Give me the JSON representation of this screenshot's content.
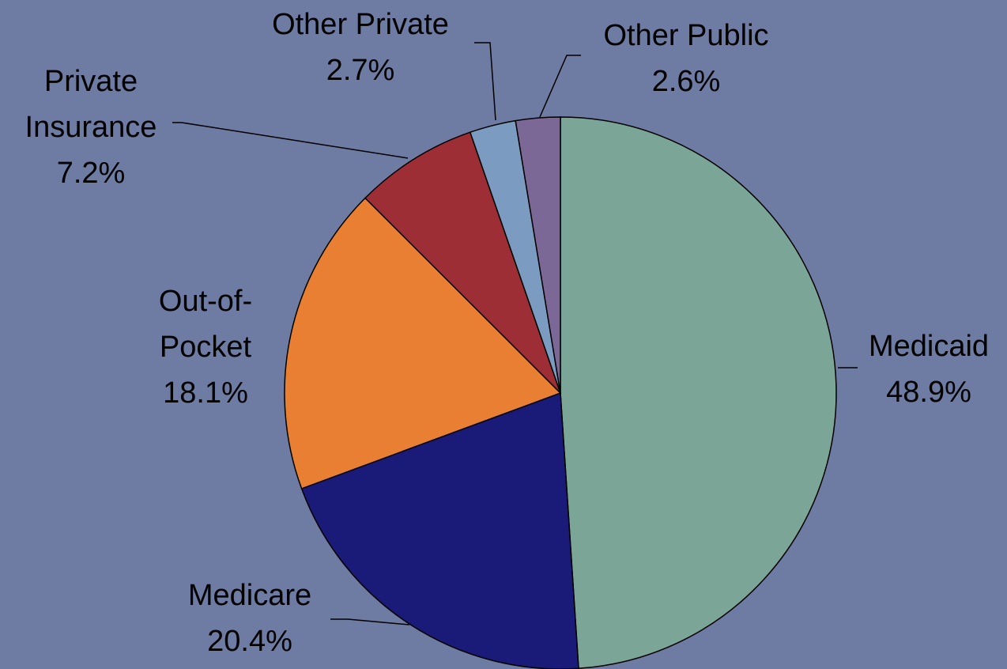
{
  "chart_data": {
    "type": "pie",
    "title": "",
    "start_angle_deg": 0,
    "direction": "clockwise",
    "slices": [
      {
        "label": [
          "Medicaid"
        ],
        "percent_label": "48.9%",
        "value": 48.9,
        "color": "#7ba597"
      },
      {
        "label": [
          "Medicare"
        ],
        "percent_label": "20.4%",
        "value": 20.4,
        "color": "#1a1a78"
      },
      {
        "label": [
          "Out-of-",
          "Pocket"
        ],
        "percent_label": "18.1%",
        "value": 18.1,
        "color": "#e97f33"
      },
      {
        "label": [
          "Private",
          "Insurance"
        ],
        "percent_label": "7.2%",
        "value": 7.2,
        "color": "#9d2e36"
      },
      {
        "label": [
          "Other Private"
        ],
        "percent_label": "2.7%",
        "value": 2.7,
        "color": "#7b9cc0"
      },
      {
        "label": [
          "Other Public"
        ],
        "percent_label": "2.6%",
        "value": 2.6,
        "color": "#7c6896"
      }
    ],
    "background_color": "#6e7ba2",
    "legend": "none",
    "data_labels": "outside-with-leader-lines"
  }
}
